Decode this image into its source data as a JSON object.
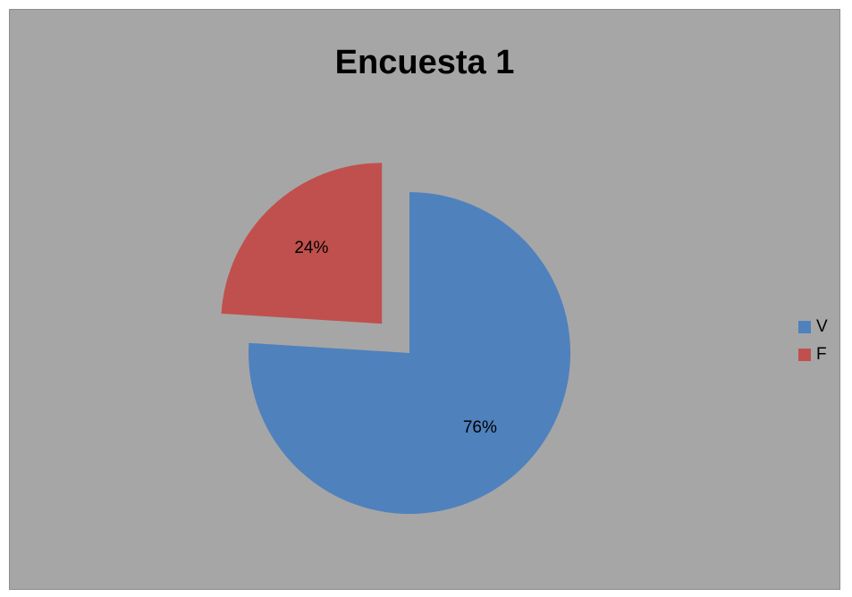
{
  "chart_data": {
    "type": "pie",
    "title": "Encuesta 1",
    "categories": [
      "V",
      "F"
    ],
    "values": [
      76,
      24
    ],
    "labels": [
      "76%",
      "24%"
    ],
    "colors": [
      "#4f81bd",
      "#c0504d"
    ],
    "exploded": [
      false,
      true
    ],
    "legend_position": "right"
  }
}
